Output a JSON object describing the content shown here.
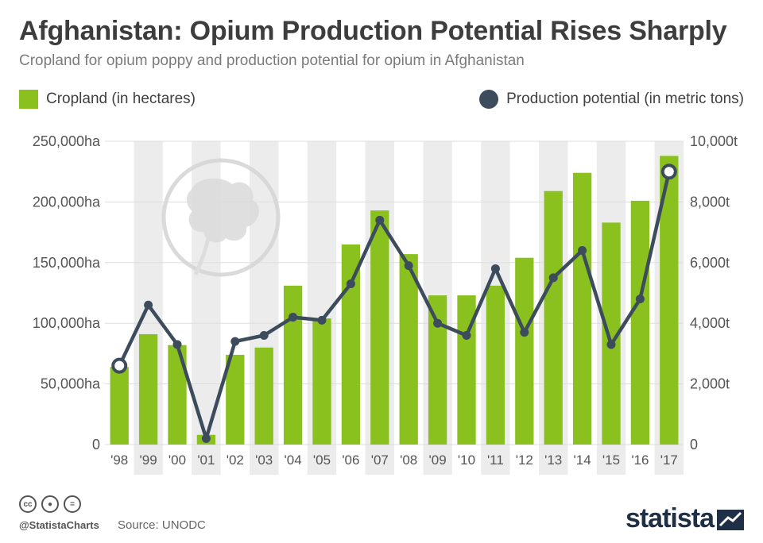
{
  "header": {
    "title": "Afghanistan: Opium Production Potential Rises Sharply",
    "subtitle": "Cropland for opium poppy and production potential for opium in Afghanistan"
  },
  "legend": {
    "bars_label": "Cropland (in hectares)",
    "line_label": "Production potential (in metric tons)"
  },
  "colors": {
    "bar": "#8ac11f",
    "line": "#3d4c5d",
    "stripe": "#ececec",
    "grid": "#dddddd"
  },
  "chart_data": {
    "type": "bar",
    "categories": [
      "'98",
      "'99",
      "'00",
      "'01",
      "'02",
      "'03",
      "'04",
      "'05",
      "'06",
      "'07",
      "'08",
      "'09",
      "'10",
      "'11",
      "'12",
      "'13",
      "'14",
      "'15",
      "'16",
      "'17"
    ],
    "series": [
      {
        "name": "Cropland (in hectares)",
        "type": "bar",
        "axis": "left",
        "values": [
          64000,
          91000,
          82000,
          8000,
          74000,
          80000,
          131000,
          104000,
          165000,
          193000,
          157000,
          123000,
          123000,
          131000,
          154000,
          209000,
          224000,
          183000,
          201000,
          238000
        ]
      },
      {
        "name": "Production potential (in metric tons)",
        "type": "line",
        "axis": "right",
        "values": [
          2600,
          4600,
          3300,
          200,
          3400,
          3600,
          4200,
          4100,
          5300,
          7400,
          5900,
          4000,
          3600,
          5800,
          3700,
          5500,
          6400,
          3300,
          4800,
          9000
        ]
      }
    ],
    "y_left": {
      "ylim": [
        0,
        250000
      ],
      "ticks": [
        0,
        50000,
        100000,
        150000,
        200000,
        250000
      ],
      "tick_labels": [
        "0",
        "50,000ha",
        "100,000ha",
        "150,000ha",
        "200,000ha",
        "250,000ha"
      ]
    },
    "y_right": {
      "ylim": [
        0,
        10000
      ],
      "ticks": [
        0,
        2000,
        4000,
        6000,
        8000,
        10000
      ],
      "tick_labels": [
        "0",
        "2,000t",
        "4,000t",
        "6,000t",
        "8,000t",
        "10,000t"
      ]
    },
    "highlighted_points": [
      0,
      19
    ],
    "grid": true,
    "alternating_column_shading": true
  },
  "footer": {
    "license_icons": [
      "cc-icon",
      "by-icon",
      "equals-icon"
    ],
    "handle": "@StatistaCharts",
    "source": "Source: UNODC",
    "brand": "statista"
  }
}
